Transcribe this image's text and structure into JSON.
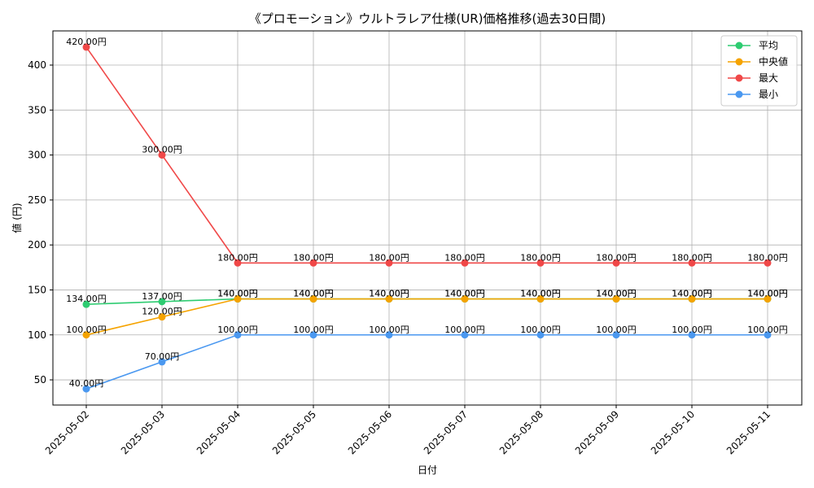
{
  "chart_data": {
    "type": "line",
    "title": "《プロモーション》ウルトラレア仕様(UR)価格推移(過去30日間)",
    "xlabel": "日付",
    "ylabel": "値 (円)",
    "categories": [
      "2025-05-02",
      "2025-05-03",
      "2025-05-04",
      "2025-05-05",
      "2025-05-06",
      "2025-05-07",
      "2025-05-08",
      "2025-05-09",
      "2025-05-10",
      "2025-05-11"
    ],
    "ylim": [
      22,
      438
    ],
    "yticks": [
      50,
      100,
      150,
      200,
      250,
      300,
      350,
      400
    ],
    "grid": true,
    "legend_position": "top-right",
    "value_suffix": "円",
    "series": [
      {
        "name": "平均",
        "color": "#2ecc71",
        "values": [
          134,
          137,
          140,
          140,
          140,
          140,
          140,
          140,
          140,
          140
        ],
        "labels": [
          "134.00円",
          "137.00円",
          "140.00円",
          "140.00円",
          "140.00円",
          "140.00円",
          "140.00円",
          "140.00円",
          "140.00円",
          "140.00円"
        ]
      },
      {
        "name": "中央値",
        "color": "#f5a300",
        "values": [
          100,
          120,
          140,
          140,
          140,
          140,
          140,
          140,
          140,
          140
        ],
        "labels": [
          "100.00円",
          "120.00円",
          "140.00円",
          "140.00円",
          "140.00円",
          "140.00円",
          "140.00円",
          "140.00円",
          "140.00円",
          "140.00円"
        ]
      },
      {
        "name": "最大",
        "color": "#f04848",
        "values": [
          420,
          300,
          180,
          180,
          180,
          180,
          180,
          180,
          180,
          180
        ],
        "labels": [
          "420.00円",
          "300.00円",
          "180.00円",
          "180.00円",
          "180.00円",
          "180.00円",
          "180.00円",
          "180.00円",
          "180.00円",
          "180.00円"
        ]
      },
      {
        "name": "最小",
        "color": "#4a98f0",
        "values": [
          40,
          70,
          100,
          100,
          100,
          100,
          100,
          100,
          100,
          100
        ],
        "labels": [
          "40.00円",
          "70.00円",
          "100.00円",
          "100.00円",
          "100.00円",
          "100.00円",
          "100.00円",
          "100.00円",
          "100.00円",
          "100.00円"
        ]
      }
    ]
  }
}
